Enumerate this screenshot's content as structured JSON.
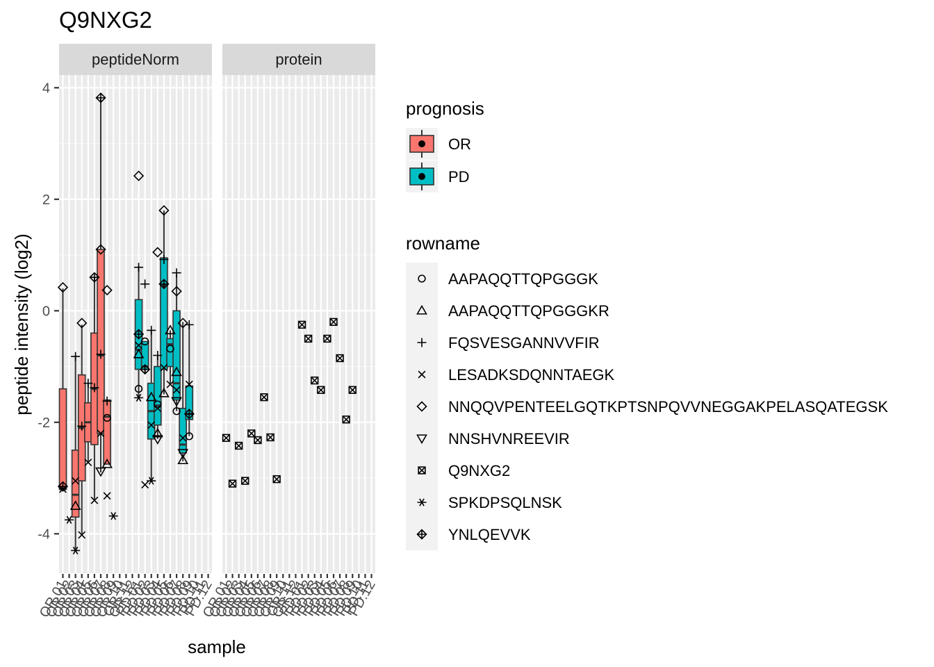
{
  "title": "Q9NXG2",
  "chart_data": {
    "type": "boxplot",
    "title": "Q9NXG2",
    "xlabel": "sample",
    "ylabel": "peptide intensity (log2)",
    "ylim": [
      -4.7,
      4.4
    ],
    "yticks": [
      -4,
      -2,
      0,
      2,
      4
    ],
    "grid": true,
    "legend_position": "right",
    "facets": [
      "peptideNorm",
      "protein"
    ],
    "x_categories": [
      "OR.01",
      "OR.02",
      "OR.03",
      "OR.04",
      "OR.05",
      "OR.06",
      "OR.07",
      "OR.08",
      "OR.09",
      "OR.10",
      "OR.11",
      "OR.12",
      "PD.01",
      "PD.02",
      "PD.03",
      "PD.04",
      "PD.05",
      "PD.06",
      "PD.07",
      "PD.08",
      "PD.09",
      "PD.10",
      "PD.11",
      "PD.12"
    ],
    "boxes": [
      {
        "facet": "peptideNorm",
        "sample": "OR.01",
        "prognosis": "OR",
        "lower_whisker": -3.2,
        "q1": -3.2,
        "median": -3.2,
        "q3": -1.4,
        "upper_whisker": 0.4
      },
      {
        "facet": "peptideNorm",
        "sample": "OR.03",
        "prognosis": "OR",
        "lower_whisker": -4.3,
        "q1": -3.7,
        "median": -3.3,
        "q3": -2.5,
        "upper_whisker": -0.8
      },
      {
        "facet": "peptideNorm",
        "sample": "OR.04",
        "prognosis": "OR",
        "lower_whisker": -4.0,
        "q1": -3.05,
        "median": -2.1,
        "q3": -1.15,
        "upper_whisker": -0.25
      },
      {
        "facet": "peptideNorm",
        "sample": "OR.05",
        "prognosis": "OR",
        "lower_whisker": -2.7,
        "q1": -2.35,
        "median": -2.0,
        "q3": -1.65,
        "upper_whisker": -1.3
      },
      {
        "facet": "peptideNorm",
        "sample": "OR.06",
        "prognosis": "OR",
        "lower_whisker": -3.4,
        "q1": -2.4,
        "median": -1.4,
        "q3": -0.4,
        "upper_whisker": 0.6
      },
      {
        "facet": "peptideNorm",
        "sample": "OR.07",
        "prognosis": "OR",
        "lower_whisker": -2.9,
        "q1": -2.2,
        "median": -0.8,
        "q3": 1.1,
        "upper_whisker": 3.8
      },
      {
        "facet": "peptideNorm",
        "sample": "OR.08",
        "prognosis": "OR",
        "lower_whisker": -2.75,
        "q1": -2.75,
        "median": -1.9,
        "q3": -1.6,
        "upper_whisker": -1.6
      },
      {
        "facet": "peptideNorm",
        "sample": "PD.01",
        "prognosis": "PD",
        "lower_whisker": -1.55,
        "q1": -1.05,
        "median": -0.7,
        "q3": 0.2,
        "upper_whisker": 0.8
      },
      {
        "facet": "peptideNorm",
        "sample": "PD.02",
        "prognosis": "PD",
        "lower_whisker": -1.1,
        "q1": -1.05,
        "median": -1.0,
        "q3": -0.55,
        "upper_whisker": -0.55
      },
      {
        "facet": "peptideNorm",
        "sample": "PD.03",
        "prognosis": "PD",
        "lower_whisker": -3.05,
        "q1": -2.3,
        "median": -1.8,
        "q3": -1.3,
        "upper_whisker": -0.35
      },
      {
        "facet": "peptideNorm",
        "sample": "PD.04",
        "prognosis": "PD",
        "lower_whisker": -2.3,
        "q1": -2.05,
        "median": -1.7,
        "q3": -1.0,
        "upper_whisker": -0.8
      },
      {
        "facet": "peptideNorm",
        "sample": "PD.05",
        "prognosis": "PD",
        "lower_whisker": -1.5,
        "q1": -1.05,
        "median": 0.45,
        "q3": 0.95,
        "upper_whisker": 1.8
      },
      {
        "facet": "peptideNorm",
        "sample": "PD.06",
        "prognosis": "PD",
        "lower_whisker": -1.3,
        "q1": -1.0,
        "median": -0.6,
        "q3": -0.5,
        "upper_whisker": -0.35
      },
      {
        "facet": "peptideNorm",
        "sample": "PD.07",
        "prognosis": "PD",
        "lower_whisker": -1.8,
        "q1": -1.6,
        "median": -1.3,
        "q3": 0.0,
        "upper_whisker": 0.65
      },
      {
        "facet": "peptideNorm",
        "sample": "PD.08",
        "prognosis": "PD",
        "lower_whisker": -2.7,
        "q1": -2.55,
        "median": -2.4,
        "q3": -1.75,
        "upper_whisker": -0.2
      },
      {
        "facet": "peptideNorm",
        "sample": "PD.09",
        "prognosis": "PD",
        "lower_whisker": -2.25,
        "q1": -1.95,
        "median": -1.85,
        "q3": -1.35,
        "upper_whisker": -0.25
      }
    ],
    "points": [
      {
        "facet": "peptideNorm",
        "sample": "OR.01",
        "peptide": "NNQQVPENTEELGQTKPTSNPQVVNEGGAKPELASQATEGSK",
        "y": 0.42
      },
      {
        "facet": "peptideNorm",
        "sample": "OR.01",
        "peptide": "YNLQEVVK",
        "y": -3.15
      },
      {
        "facet": "peptideNorm",
        "sample": "OR.01",
        "peptide": "LESADKSDQNNTAEGK",
        "y": -3.2
      },
      {
        "facet": "peptideNorm",
        "sample": "OR.02",
        "peptide": "SPKDPSQLNSK",
        "y": -3.75
      },
      {
        "facet": "peptideNorm",
        "sample": "OR.03",
        "peptide": "FQSVESGANNVVFIR",
        "y": -0.82
      },
      {
        "facet": "peptideNorm",
        "sample": "OR.03",
        "peptide": "LESADKSDQNNTAEGK",
        "y": -3.05
      },
      {
        "facet": "peptideNorm",
        "sample": "OR.03",
        "peptide": "AAPAQQTTQPGGGKR",
        "y": -3.5
      },
      {
        "facet": "peptideNorm",
        "sample": "OR.03",
        "peptide": "SPKDPSQLNSK",
        "y": -4.3
      },
      {
        "facet": "peptideNorm",
        "sample": "OR.04",
        "peptide": "NNQQVPENTEELGQTKPTSNPQVVNEGGAKPELASQATEGSK",
        "y": -0.22
      },
      {
        "facet": "peptideNorm",
        "sample": "OR.04",
        "peptide": "FQSVESGANNVVFIR",
        "y": -2.07
      },
      {
        "facet": "peptideNorm",
        "sample": "OR.04",
        "peptide": "LESADKSDQNNTAEGK",
        "y": -4.02
      },
      {
        "facet": "peptideNorm",
        "sample": "OR.05",
        "peptide": "FQSVESGANNVVFIR",
        "y": -1.3
      },
      {
        "facet": "peptideNorm",
        "sample": "OR.05",
        "peptide": "LESADKSDQNNTAEGK",
        "y": -2.72
      },
      {
        "facet": "peptideNorm",
        "sample": "OR.06",
        "peptide": "YNLQEVVK",
        "y": 0.6
      },
      {
        "facet": "peptideNorm",
        "sample": "OR.06",
        "peptide": "FQSVESGANNVVFIR",
        "y": -1.38
      },
      {
        "facet": "peptideNorm",
        "sample": "OR.06",
        "peptide": "LESADKSDQNNTAEGK",
        "y": -3.4
      },
      {
        "facet": "peptideNorm",
        "sample": "OR.07",
        "peptide": "YNLQEVVK",
        "y": 3.82
      },
      {
        "facet": "peptideNorm",
        "sample": "OR.07",
        "peptide": "NNQQVPENTEELGQTKPTSNPQVVNEGGAKPELASQATEGSK",
        "y": 1.1
      },
      {
        "facet": "peptideNorm",
        "sample": "OR.07",
        "peptide": "FQSVESGANNVVFIR",
        "y": -0.78
      },
      {
        "facet": "peptideNorm",
        "sample": "OR.07",
        "peptide": "LESADKSDQNNTAEGK",
        "y": -2.2
      },
      {
        "facet": "peptideNorm",
        "sample": "OR.07",
        "peptide": "NNSHVNREEVIR",
        "y": -2.88
      },
      {
        "facet": "peptideNorm",
        "sample": "OR.08",
        "peptide": "NNQQVPENTEELGQTKPTSNPQVVNEGGAKPELASQATEGSK",
        "y": 0.37
      },
      {
        "facet": "peptideNorm",
        "sample": "OR.08",
        "peptide": "FQSVESGANNVVFIR",
        "y": -1.62
      },
      {
        "facet": "peptideNorm",
        "sample": "OR.08",
        "peptide": "AAPAQQTTQPGGGK",
        "y": -1.92
      },
      {
        "facet": "peptideNorm",
        "sample": "OR.08",
        "peptide": "AAPAQQTTQPGGGKR",
        "y": -2.75
      },
      {
        "facet": "peptideNorm",
        "sample": "OR.08",
        "peptide": "LESADKSDQNNTAEGK",
        "y": -3.32
      },
      {
        "facet": "peptideNorm",
        "sample": "OR.09",
        "peptide": "SPKDPSQLNSK",
        "y": -3.68
      },
      {
        "facet": "peptideNorm",
        "sample": "PD.01",
        "peptide": "NNQQVPENTEELGQTKPTSNPQVVNEGGAKPELASQATEGSK",
        "y": 2.42
      },
      {
        "facet": "peptideNorm",
        "sample": "PD.01",
        "peptide": "FQSVESGANNVVFIR",
        "y": 0.78
      },
      {
        "facet": "peptideNorm",
        "sample": "PD.01",
        "peptide": "YNLQEVVK",
        "y": -0.42
      },
      {
        "facet": "peptideNorm",
        "sample": "PD.01",
        "peptide": "LESADKSDQNNTAEGK",
        "y": -0.62
      },
      {
        "facet": "peptideNorm",
        "sample": "PD.01",
        "peptide": "AAPAQQTTQPGGGKR",
        "y": -0.78
      },
      {
        "facet": "peptideNorm",
        "sample": "PD.01",
        "peptide": "AAPAQQTTQPGGGK",
        "y": -1.4
      },
      {
        "facet": "peptideNorm",
        "sample": "PD.01",
        "peptide": "SPKDPSQLNSK",
        "y": -1.56
      },
      {
        "facet": "peptideNorm",
        "sample": "PD.02",
        "peptide": "FQSVESGANNVVFIR",
        "y": 0.48
      },
      {
        "facet": "peptideNorm",
        "sample": "PD.02",
        "peptide": "AAPAQQTTQPGGGK",
        "y": -0.55
      },
      {
        "facet": "peptideNorm",
        "sample": "PD.02",
        "peptide": "YNLQEVVK",
        "y": -1.05
      },
      {
        "facet": "peptideNorm",
        "sample": "PD.02",
        "peptide": "LESADKSDQNNTAEGK",
        "y": -3.12
      },
      {
        "facet": "peptideNorm",
        "sample": "PD.03",
        "peptide": "FQSVESGANNVVFIR",
        "y": -0.35
      },
      {
        "facet": "peptideNorm",
        "sample": "PD.03",
        "peptide": "AAPAQQTTQPGGGKR",
        "y": -1.55
      },
      {
        "facet": "peptideNorm",
        "sample": "PD.03",
        "peptide": "LESADKSDQNNTAEGK",
        "y": -2.05
      },
      {
        "facet": "peptideNorm",
        "sample": "PD.03",
        "peptide": "SPKDPSQLNSK",
        "y": -3.05
      },
      {
        "facet": "peptideNorm",
        "sample": "PD.04",
        "peptide": "NNQQVPENTEELGQTKPTSNPQVVNEGGAKPELASQATEGSK",
        "y": 1.05
      },
      {
        "facet": "peptideNorm",
        "sample": "PD.04",
        "peptide": "FQSVESGANNVVFIR",
        "y": -0.8
      },
      {
        "facet": "peptideNorm",
        "sample": "PD.04",
        "peptide": "AAPAQQTTQPGGGK",
        "y": -1.68
      },
      {
        "facet": "peptideNorm",
        "sample": "PD.04",
        "peptide": "LESADKSDQNNTAEGK",
        "y": -1.75
      },
      {
        "facet": "peptideNorm",
        "sample": "PD.04",
        "peptide": "AAPAQQTTQPGGGKR",
        "y": -2.2
      },
      {
        "facet": "peptideNorm",
        "sample": "PD.04",
        "peptide": "NNSHVNREEVIR",
        "y": -2.3
      },
      {
        "facet": "peptideNorm",
        "sample": "PD.05",
        "peptide": "NNQQVPENTEELGQTKPTSNPQVVNEGGAKPELASQATEGSK",
        "y": 1.8
      },
      {
        "facet": "peptideNorm",
        "sample": "PD.05",
        "peptide": "FQSVESGANNVVFIR",
        "y": 0.92
      },
      {
        "facet": "peptideNorm",
        "sample": "PD.05",
        "peptide": "YNLQEVVK",
        "y": 0.48
      },
      {
        "facet": "peptideNorm",
        "sample": "PD.05",
        "peptide": "LESADKSDQNNTAEGK",
        "y": -1.02
      },
      {
        "facet": "peptideNorm",
        "sample": "PD.05",
        "peptide": "AAPAQQTTQPGGGKR",
        "y": -1.48
      },
      {
        "facet": "peptideNorm",
        "sample": "PD.06",
        "peptide": "AAPAQQTTQPGGGKR",
        "y": -0.35
      },
      {
        "facet": "peptideNorm",
        "sample": "PD.06",
        "peptide": "AAPAQQTTQPGGGK",
        "y": -0.68
      },
      {
        "facet": "peptideNorm",
        "sample": "PD.06",
        "peptide": "LESADKSDQNNTAEGK",
        "y": -1.32
      },
      {
        "facet": "peptideNorm",
        "sample": "PD.07",
        "peptide": "NNQQVPENTEELGQTKPTSNPQVVNEGGAKPELASQATEGSK",
        "y": 0.35
      },
      {
        "facet": "peptideNorm",
        "sample": "PD.07",
        "peptide": "FQSVESGANNVVFIR",
        "y": 0.68
      },
      {
        "facet": "peptideNorm",
        "sample": "PD.07",
        "peptide": "AAPAQQTTQPGGGKR",
        "y": -1.1
      },
      {
        "facet": "peptideNorm",
        "sample": "PD.07",
        "peptide": "LESADKSDQNNTAEGK",
        "y": -1.42
      },
      {
        "facet": "peptideNorm",
        "sample": "PD.07",
        "peptide": "NNSHVNREEVIR",
        "y": -1.62
      },
      {
        "facet": "peptideNorm",
        "sample": "PD.07",
        "peptide": "AAPAQQTTQPGGGK",
        "y": -1.8
      },
      {
        "facet": "peptideNorm",
        "sample": "PD.08",
        "peptide": "NNQQVPENTEELGQTKPTSNPQVVNEGGAKPELASQATEGSK",
        "y": -0.22
      },
      {
        "facet": "peptideNorm",
        "sample": "PD.08",
        "peptide": "LESADKSDQNNTAEGK",
        "y": -2.28
      },
      {
        "facet": "peptideNorm",
        "sample": "PD.08",
        "peptide": "NNSHVNREEVIR",
        "y": -2.55
      },
      {
        "facet": "peptideNorm",
        "sample": "PD.08",
        "peptide": "AAPAQQTTQPGGGKR",
        "y": -2.68
      },
      {
        "facet": "peptideNorm",
        "sample": "PD.09",
        "peptide": "FQSVESGANNVVFIR",
        "y": -0.25
      },
      {
        "facet": "peptideNorm",
        "sample": "PD.09",
        "peptide": "LESADKSDQNNTAEGK",
        "y": -1.32
      },
      {
        "facet": "peptideNorm",
        "sample": "PD.09",
        "peptide": "YNLQEVVK",
        "y": -1.85
      },
      {
        "facet": "peptideNorm",
        "sample": "PD.09",
        "peptide": "AAPAQQTTQPGGGK",
        "y": -2.25
      },
      {
        "facet": "protein",
        "sample": "OR.01",
        "peptide": "Q9NXG2",
        "y": -2.28
      },
      {
        "facet": "protein",
        "sample": "OR.02",
        "peptide": "Q9NXG2",
        "y": -3.1
      },
      {
        "facet": "protein",
        "sample": "OR.03",
        "peptide": "Q9NXG2",
        "y": -2.42
      },
      {
        "facet": "protein",
        "sample": "OR.04",
        "peptide": "Q9NXG2",
        "y": -3.05
      },
      {
        "facet": "protein",
        "sample": "OR.05",
        "peptide": "Q9NXG2",
        "y": -2.2
      },
      {
        "facet": "protein",
        "sample": "OR.06",
        "peptide": "Q9NXG2",
        "y": -2.32
      },
      {
        "facet": "protein",
        "sample": "OR.07",
        "peptide": "Q9NXG2",
        "y": -1.55
      },
      {
        "facet": "protein",
        "sample": "OR.08",
        "peptide": "Q9NXG2",
        "y": -2.27
      },
      {
        "facet": "protein",
        "sample": "OR.09",
        "peptide": "Q9NXG2",
        "y": -3.02
      },
      {
        "facet": "protein",
        "sample": "PD.01",
        "peptide": "Q9NXG2",
        "y": -0.25
      },
      {
        "facet": "protein",
        "sample": "PD.02",
        "peptide": "Q9NXG2",
        "y": -0.5
      },
      {
        "facet": "protein",
        "sample": "PD.03",
        "peptide": "Q9NXG2",
        "y": -1.25
      },
      {
        "facet": "protein",
        "sample": "PD.04",
        "peptide": "Q9NXG2",
        "y": -1.42
      },
      {
        "facet": "protein",
        "sample": "PD.05",
        "peptide": "Q9NXG2",
        "y": -0.5
      },
      {
        "facet": "protein",
        "sample": "PD.06",
        "peptide": "Q9NXG2",
        "y": -0.2
      },
      {
        "facet": "protein",
        "sample": "PD.07",
        "peptide": "Q9NXG2",
        "y": -0.85
      },
      {
        "facet": "protein",
        "sample": "PD.08",
        "peptide": "Q9NXG2",
        "y": -1.95
      },
      {
        "facet": "protein",
        "sample": "PD.09",
        "peptide": "Q9NXG2",
        "y": -1.42
      }
    ],
    "legends": {
      "prognosis": {
        "title": "prognosis",
        "items": [
          {
            "label": "OR",
            "color": "#f8766d"
          },
          {
            "label": "PD",
            "color": "#00bfc4"
          }
        ]
      },
      "rowname": {
        "title": "rowname",
        "items": [
          {
            "label": "AAPAQQTTQPGGGK",
            "shape": "circle"
          },
          {
            "label": "AAPAQQTTQPGGGKR",
            "shape": "triangle-up"
          },
          {
            "label": "FQSVESGANNVVFIR",
            "shape": "plus"
          },
          {
            "label": "LESADKSDQNNTAEGK",
            "shape": "cross"
          },
          {
            "label": "NNQQVPENTEELGQTKPTSNPQVVNEGGAKPELASQATEGSK",
            "shape": "diamond"
          },
          {
            "label": "NNSHVNREEVIR",
            "shape": "triangle-down"
          },
          {
            "label": "Q9NXG2",
            "shape": "square-cross"
          },
          {
            "label": "SPKDPSQLNSK",
            "shape": "asterisk"
          },
          {
            "label": "YNLQEVVK",
            "shape": "diamond-plus"
          }
        ]
      }
    }
  }
}
